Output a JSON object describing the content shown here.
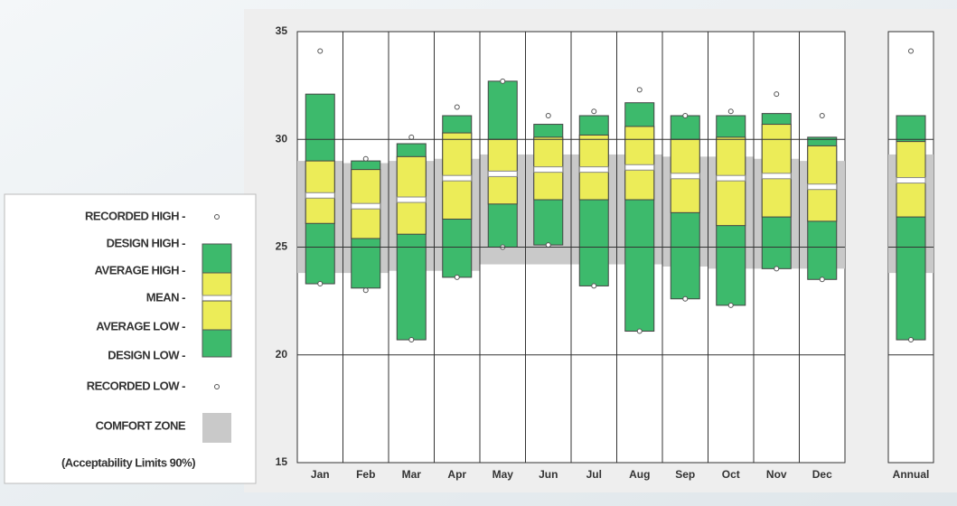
{
  "chart_data": {
    "type": "climate-range",
    "categories": [
      "Jan",
      "Feb",
      "Mar",
      "Apr",
      "May",
      "Jun",
      "Jul",
      "Aug",
      "Sep",
      "Oct",
      "Nov",
      "Dec",
      "Annual"
    ],
    "ylim": [
      15,
      35
    ],
    "yticks": [
      15,
      20,
      25,
      30,
      35
    ],
    "grid": true,
    "series": [
      {
        "name": "RECORDED HIGH -",
        "color": "#ffffff",
        "values": [
          34.1,
          29.1,
          30.1,
          31.5,
          32.7,
          31.1,
          31.3,
          32.3,
          31.1,
          31.3,
          32.1,
          31.1,
          34.1
        ]
      },
      {
        "name": "DESIGN HIGH -",
        "color": "#3dba6c",
        "values": [
          32.1,
          29.0,
          29.8,
          31.1,
          32.7,
          30.7,
          31.1,
          31.7,
          31.1,
          31.1,
          31.2,
          30.1,
          31.1
        ]
      },
      {
        "name": "AVERAGE HIGH -",
        "color": "#ecec58",
        "values": [
          29.0,
          28.6,
          29.2,
          30.3,
          30.0,
          30.1,
          30.2,
          30.6,
          30.0,
          30.1,
          30.7,
          29.7,
          29.9
        ]
      },
      {
        "name": "MEAN -",
        "color": "#ffffff",
        "values": [
          27.4,
          26.9,
          27.2,
          28.2,
          28.4,
          28.6,
          28.6,
          28.7,
          28.3,
          28.2,
          28.3,
          27.8,
          28.1
        ]
      },
      {
        "name": "AVERAGE LOW -",
        "color": "#ecec58",
        "values": [
          26.1,
          25.4,
          25.6,
          26.3,
          27.0,
          27.2,
          27.2,
          27.2,
          26.6,
          26.0,
          26.4,
          26.2,
          26.4
        ]
      },
      {
        "name": "DESIGN LOW -",
        "color": "#3dba6c",
        "values": [
          23.3,
          23.1,
          20.7,
          23.6,
          25.0,
          25.1,
          23.2,
          21.1,
          22.6,
          22.3,
          24.0,
          23.5,
          20.7
        ]
      },
      {
        "name": "RECORDED LOW -",
        "color": "#ffffff",
        "values": [
          23.3,
          23.0,
          20.7,
          23.6,
          25.0,
          25.1,
          23.2,
          21.1,
          22.6,
          22.3,
          24.0,
          23.5,
          20.7
        ]
      }
    ],
    "comfort_zone": {
      "name": "COMFORT ZONE",
      "note": "(Acceptability Limits 90%)",
      "color": "#c9c9c9",
      "high": [
        29.0,
        28.9,
        29.0,
        29.1,
        29.3,
        29.3,
        29.3,
        29.3,
        29.2,
        29.2,
        29.1,
        29.0,
        29.3
      ],
      "low": [
        23.8,
        23.8,
        23.9,
        23.9,
        24.2,
        24.2,
        24.2,
        24.2,
        24.1,
        24.0,
        24.0,
        24.0,
        23.8
      ]
    }
  }
}
